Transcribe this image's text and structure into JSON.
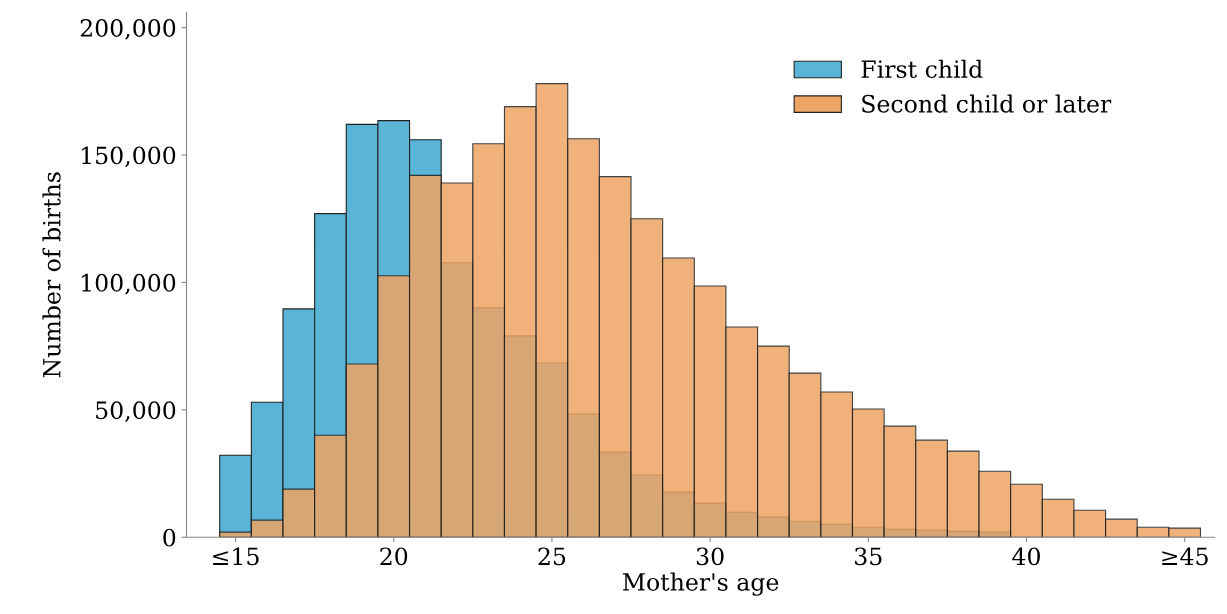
{
  "chart_data": {
    "type": "histogram",
    "xlabel": "Mother's age",
    "ylabel": "Number of births",
    "bins": [
      14.5,
      15.5,
      16.5,
      17.5,
      18.5,
      19.5,
      20.5,
      21.5,
      22.5,
      23.5,
      24.5,
      25.5,
      26.5,
      27.5,
      28.5,
      29.5,
      30.5,
      31.5,
      32.5,
      33.5,
      34.5,
      35.5,
      36.5,
      37.5,
      38.5,
      39.5,
      40.5,
      41.5,
      42.5,
      43.5,
      44.5,
      45.5
    ],
    "series": [
      {
        "name": "First child",
        "color": "#5ab4d6",
        "values": [
          32200,
          53000,
          89600,
          127000,
          162000,
          163500,
          156000,
          107700,
          90000,
          79000,
          68400,
          48300,
          33400,
          24400,
          17700,
          13400,
          9800,
          7900,
          6300,
          5100,
          3900,
          3100,
          2800,
          2400,
          2000,
          null,
          null,
          null,
          null,
          null,
          null
        ]
      },
      {
        "name": "Second child or later",
        "color": "#eea464",
        "values": [
          2000,
          6700,
          18900,
          40000,
          68000,
          102600,
          142000,
          139000,
          154400,
          169000,
          178000,
          156400,
          141500,
          125000,
          109600,
          98600,
          82500,
          75000,
          64400,
          57000,
          50300,
          43600,
          38100,
          33800,
          25900,
          20800,
          14900,
          10600,
          7100,
          3900,
          3600
        ]
      }
    ],
    "xlim": [
      13.45,
      45.95
    ],
    "ylim": [
      0,
      206000
    ],
    "xticks": [
      {
        "value": 15,
        "label": "≤15"
      },
      20,
      25,
      30,
      35,
      40,
      {
        "value": 45,
        "label": "≥45"
      }
    ],
    "yticks": [
      {
        "value": 0,
        "label": "0"
      },
      {
        "value": 50000,
        "label": "50,000"
      },
      {
        "value": 100000,
        "label": "100,000"
      },
      {
        "value": 150000,
        "label": "150,000"
      },
      {
        "value": 200000,
        "label": "200,000"
      }
    ],
    "legend": "top right",
    "grid": false
  }
}
